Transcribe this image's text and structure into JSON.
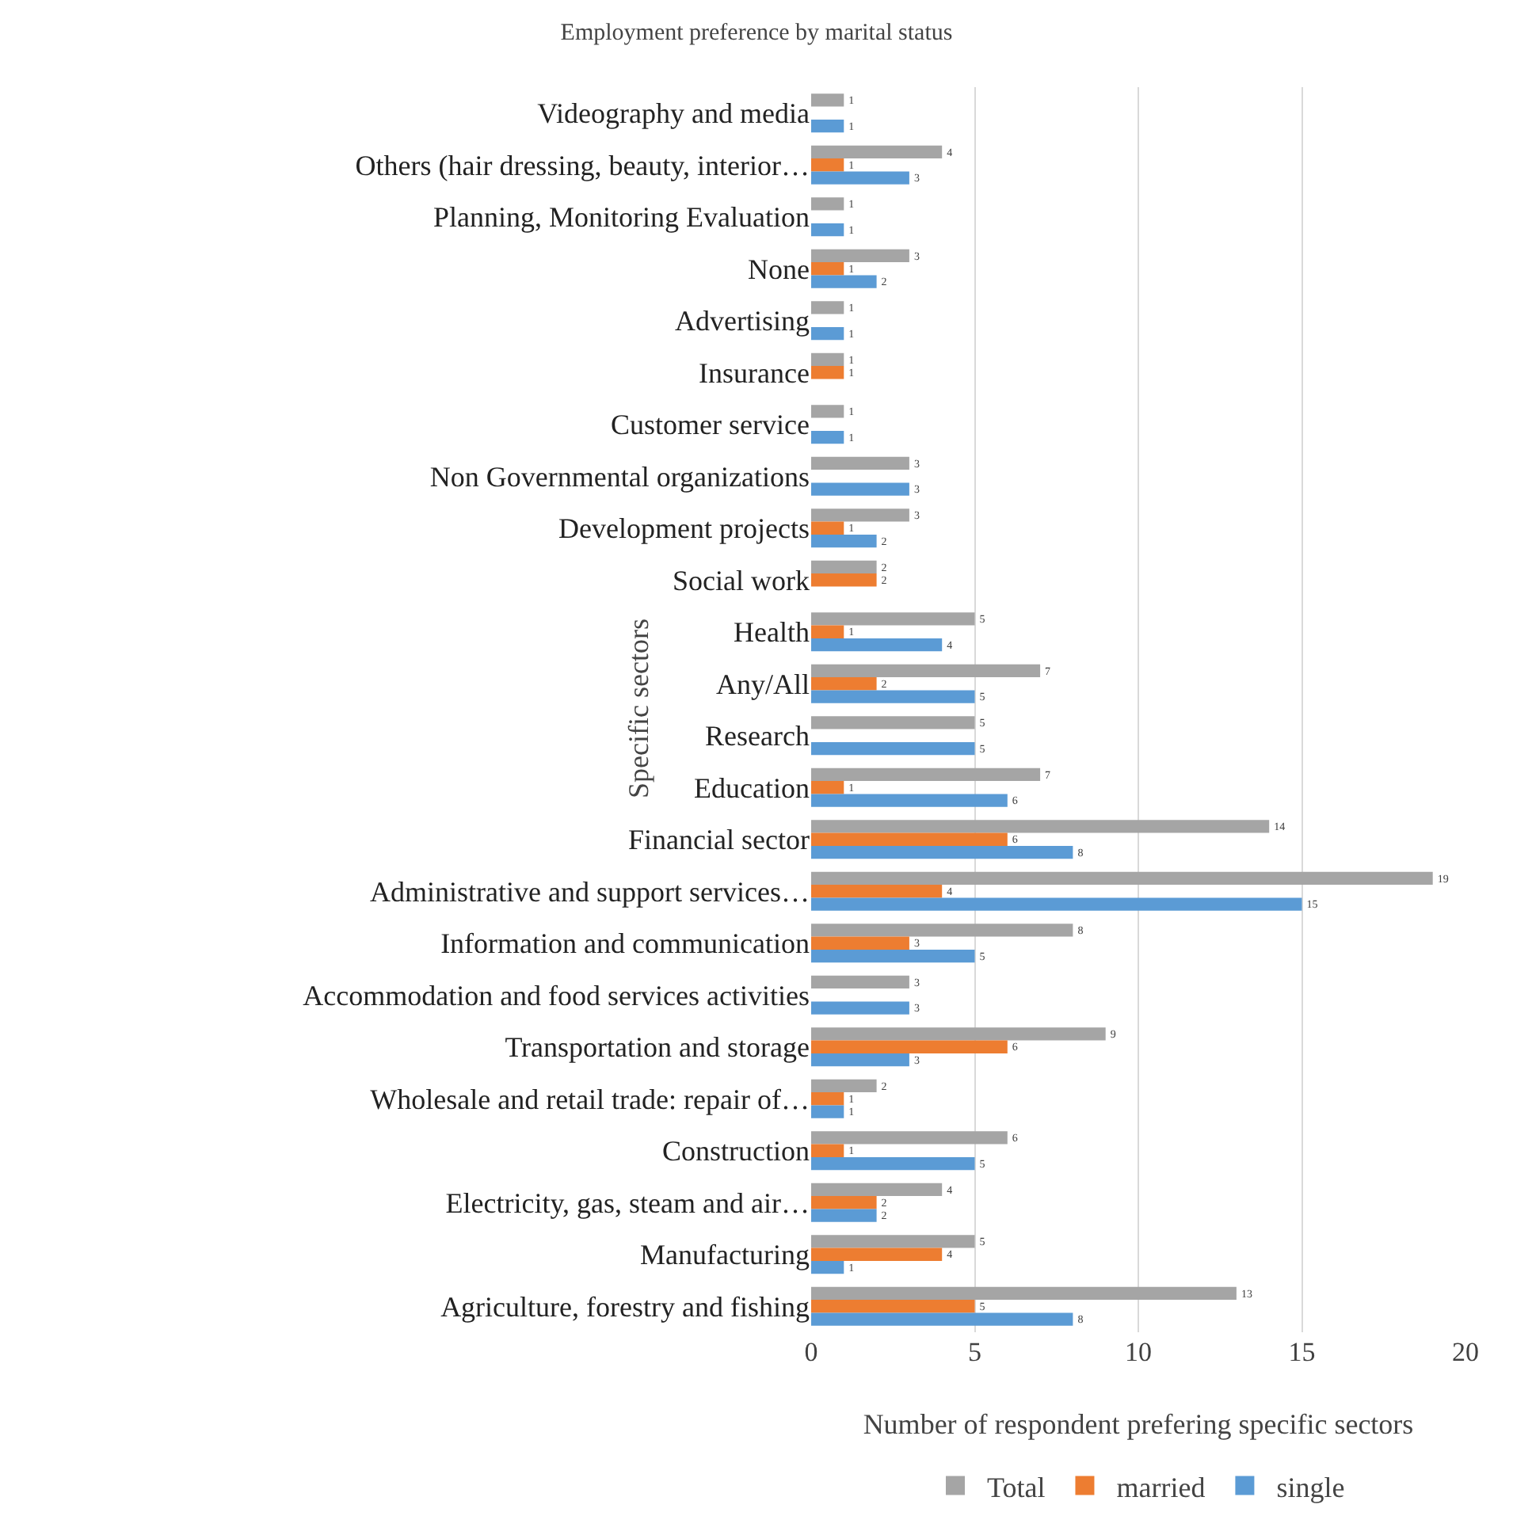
{
  "chart_data": {
    "type": "bar",
    "orientation": "horizontal",
    "title": "Employment preference by marital status",
    "xlabel": "Number of respondent prefering specific sectors",
    "ylabel": "Specific sectors",
    "categories": [
      "Videography and media",
      "Others (hair dressing, beauty, interior…",
      "Planning, Monitoring Evaluation",
      "None",
      "Advertising",
      "Insurance",
      "Customer service",
      "Non Governmental organizations",
      "Development projects",
      "Social work",
      "Health",
      "Any/All",
      "Research",
      "Education",
      "Financial sector",
      "Administrative and support services…",
      "Information and communication",
      "Accommodation and food services activities",
      "Transportation and storage",
      "Wholesale and retail trade: repair of…",
      "Construction",
      "Electricity, gas, steam and air…",
      "Manufacturing",
      "Agriculture, forestry and fishing"
    ],
    "series": [
      {
        "name": "Total",
        "color": "#a5a5a5",
        "values": [
          1,
          4,
          1,
          3,
          1,
          1,
          1,
          3,
          3,
          2,
          5,
          7,
          5,
          7,
          14,
          19,
          8,
          3,
          9,
          2,
          6,
          4,
          5,
          13
        ]
      },
      {
        "name": "married",
        "color": "#ed7d31",
        "values": [
          null,
          1,
          null,
          1,
          null,
          1,
          null,
          null,
          1,
          2,
          1,
          2,
          null,
          1,
          6,
          4,
          3,
          null,
          6,
          1,
          1,
          2,
          4,
          5
        ]
      },
      {
        "name": "single",
        "color": "#5b9bd5",
        "values": [
          1,
          3,
          1,
          2,
          1,
          null,
          1,
          3,
          2,
          null,
          4,
          5,
          5,
          6,
          8,
          15,
          5,
          3,
          3,
          1,
          5,
          2,
          1,
          8
        ]
      }
    ],
    "xlim": [
      0,
      20
    ],
    "xticks": [
      0,
      5,
      10,
      15,
      20
    ],
    "grid": "x",
    "legend": "bottom",
    "data_labels": true
  }
}
